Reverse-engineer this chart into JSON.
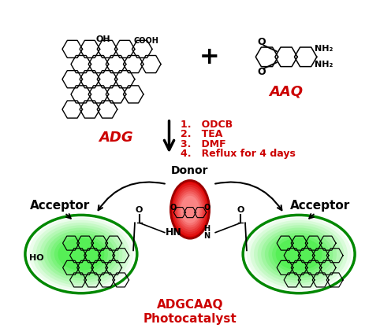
{
  "bg_color": "#ffffff",
  "adg_label": "ADG",
  "aaq_label": "AAQ",
  "arrow_label_lines": [
    "1.   ODCB",
    "2.   TEA",
    "3.   DMF",
    "4.   Reflux for 4 days"
  ],
  "donor_label": "Donor",
  "acceptor_label": "Acceptor",
  "product_label": "ADGCAAQ\nPhotocatalyst",
  "label_color": "#cc0000",
  "green_outer": "#00ee00",
  "green_inner": "#88ff88",
  "green_edge": "#008800",
  "red_outer": "#dd0000",
  "red_inner": "#ff9999",
  "red_edge": "#990000"
}
